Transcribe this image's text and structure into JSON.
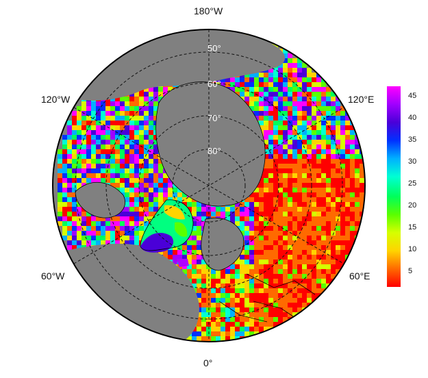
{
  "map": {
    "projection": "north-polar-stereographic",
    "background_color": "#808080",
    "boundary_color": "#000000",
    "longitude_labels": {
      "top": "180°W",
      "upper_left": "120°W",
      "upper_right": "120°E",
      "lower_left": "60°W",
      "lower_right": "60°E",
      "bottom": "0°"
    },
    "latitude_labels": [
      "50°",
      "60°",
      "70°",
      "80°"
    ]
  },
  "colorbar": {
    "ticks": [
      "45",
      "40",
      "35",
      "30",
      "25",
      "20",
      "15",
      "10",
      "5"
    ],
    "range": [
      1,
      47
    ],
    "colors": [
      "#ff0000",
      "#ff6a00",
      "#ffd400",
      "#d6ff00",
      "#5aff00",
      "#00ff5a",
      "#00ffd4",
      "#00b0ff",
      "#0030ff",
      "#4a00d8",
      "#a000ff",
      "#ff00ff"
    ]
  }
}
